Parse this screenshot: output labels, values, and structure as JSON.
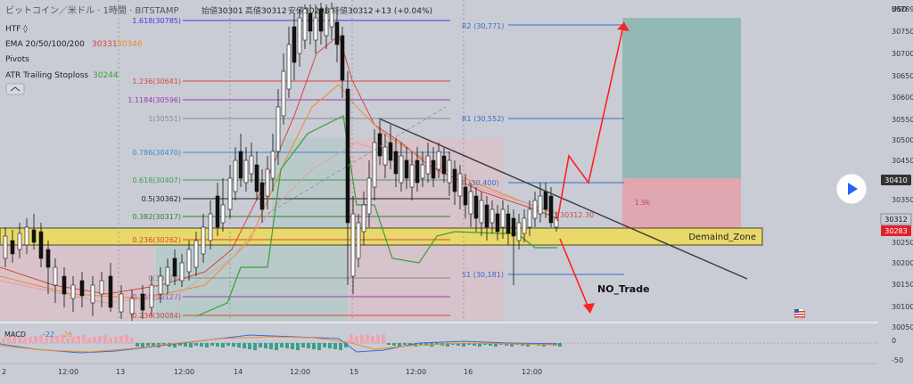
{
  "header": {
    "symbol_title": "ビットコイン／米ドル · 1時間 · BITSTAMP",
    "open_label": "始値",
    "open_value": "30301",
    "high_label": "高値",
    "high_value": "30312",
    "low_label": "安値",
    "low_value": "30298",
    "close_label": "終値",
    "close_value": "30312",
    "change": "+13 (+0.04%)",
    "currency": "USD"
  },
  "indicators": {
    "htf": "HTF ◊",
    "ema_label": "EMA 20/50/100/200",
    "ema_value1": "30331",
    "ema_value2": "30346",
    "pivots": "Pivots",
    "atr_label": "ATR Trailing Stoploss",
    "atr_value": "30244",
    "macd_label": "MACD",
    "macd_value1": "-22",
    "macd_value2": "-26"
  },
  "fib_levels": [
    {
      "label": "1.618(30785)",
      "color": "#3b3be0"
    },
    {
      "label": "1.236(30641)",
      "color": "#d9453c"
    },
    {
      "label": "1.1184(30596)",
      "color": "#9b3bb0"
    },
    {
      "label": "1(30551)",
      "color": "#8a8a8a"
    },
    {
      "label": "0.786(30470)",
      "color": "#3a8ad0"
    },
    {
      "label": "0.618(30407)",
      "color": "#3aa05a"
    },
    {
      "label": "0.5(30362)",
      "color": "#222222"
    },
    {
      "label": "0.382(30317)",
      "color": "#3a7a3a"
    },
    {
      "label": "0.236(30262)",
      "color": "#d9453c"
    },
    {
      "label": "0(30173)",
      "color": "#8a8a8a"
    },
    {
      "label": "-0.118(30127)",
      "color": "#9b3bb0"
    },
    {
      "label": "-0.236(30084)",
      "color": "#d9453c"
    }
  ],
  "pivot_labels": {
    "r2": "R2 (30,771)",
    "r1": "R1 (30,552)",
    "p": "P (30,400)",
    "s1": "S1 (30,181)"
  },
  "annotations": {
    "demand_zone": "Demaind_Zone",
    "no_trade": "NO_Trade",
    "risk_label": "1.9k",
    "price_overlay": "30312.30"
  },
  "price_axis": {
    "ticks": [
      "30789",
      "30750",
      "30700",
      "30650",
      "30600",
      "30550",
      "30500",
      "30450",
      "30410",
      "30350",
      "30312",
      "30283",
      "30250",
      "30200",
      "30150",
      "30100",
      "30050",
      "0",
      "-50"
    ],
    "badge_current": "30410",
    "badge_mid": "30312",
    "badge_red": "30283"
  },
  "time_axis": {
    "ticks": [
      "2",
      "12:00",
      "13",
      "12:00",
      "14",
      "12:00",
      "15",
      "12:00",
      "16",
      "12:00"
    ]
  },
  "colors": {
    "bg": "#c9ccd4",
    "demand_zone": "#e8d96a",
    "target_box": "#8fb8b0",
    "stop_box": "#d99aa5",
    "bull_candle": "#ffffff",
    "bear_candle": "#111111",
    "red_arrow": "#ff2020"
  },
  "controls": {
    "play_icon": "play-icon",
    "flag_icon": "us-flag-icon",
    "collapse_icon": "collapse-icon"
  }
}
